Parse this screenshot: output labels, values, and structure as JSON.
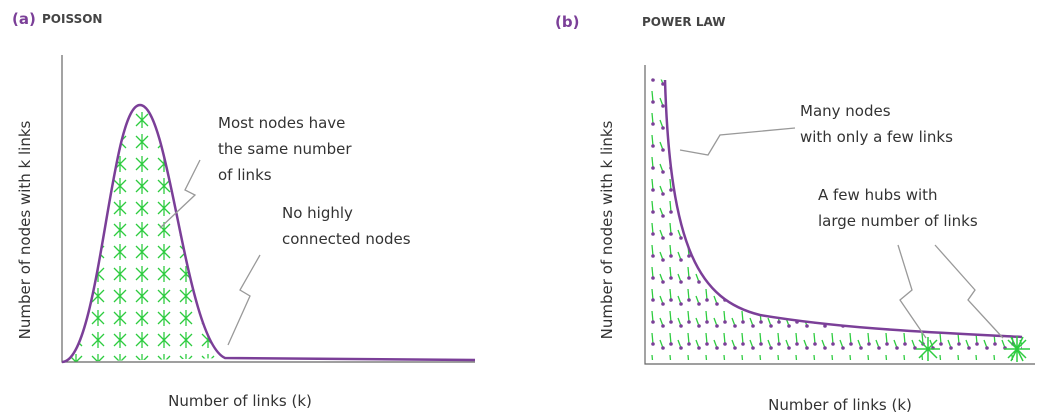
{
  "panels": [
    {
      "label": "(a)",
      "title": "POISSON",
      "y_axis_label": "Number of nodes with k links",
      "x_axis_label": "Number of links (k)",
      "annotations": [
        {
          "lines": [
            "Most nodes have",
            "the same number",
            "of links"
          ]
        },
        {
          "lines": [
            "No highly",
            "connected nodes"
          ]
        }
      ]
    },
    {
      "label": "(b)",
      "title": "POWER LAW",
      "y_axis_label": "Number of nodes with k links",
      "x_axis_label": "Number of links (k)",
      "annotations": [
        {
          "lines": [
            "Many nodes",
            "with only a few links"
          ]
        },
        {
          "lines": [
            "A few hubs with",
            "large number of links"
          ]
        }
      ]
    }
  ]
}
